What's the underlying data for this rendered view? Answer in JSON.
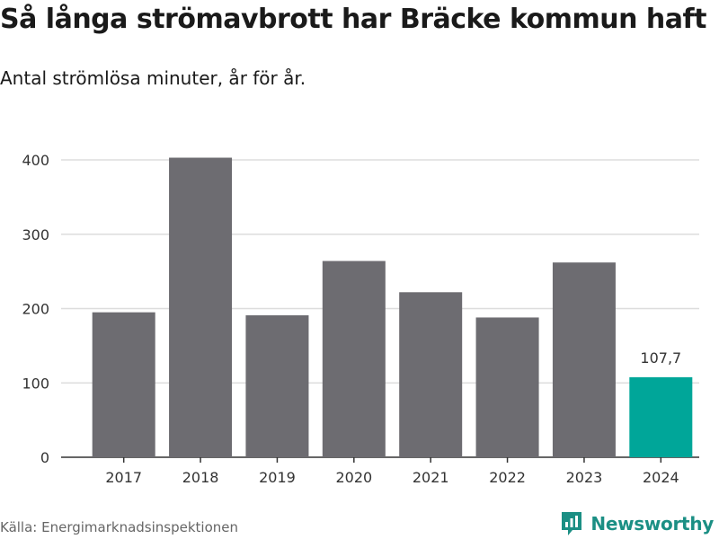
{
  "title": "Så långa strömavbrott har Bräcke kommun haft",
  "subtitle": "Antal strömlösa minuter, år för år.",
  "source": "Källa: Energimarknadsinspektionen",
  "brand": {
    "name": "Newsworthy",
    "icon": "newsworthy-logo-icon"
  },
  "colors": {
    "bar": "#6d6c71",
    "highlight": "#00a699",
    "grid": "#dddddd",
    "axis": "#333333"
  },
  "chart_data": {
    "type": "bar",
    "title": "Så långa strömavbrott har Bräcke kommun haft",
    "subtitle": "Antal strömlösa minuter, år för år.",
    "categories": [
      "2017",
      "2018",
      "2019",
      "2020",
      "2021",
      "2022",
      "2023",
      "2024"
    ],
    "values": [
      195,
      403,
      191,
      264,
      222,
      188,
      262,
      107.7
    ],
    "highlight_index": 7,
    "data_labels": [
      {
        "index": 7,
        "text": "107,7"
      }
    ],
    "ylim": [
      0,
      400
    ],
    "yticks": [
      0,
      100,
      200,
      300,
      400
    ],
    "xlabel": "",
    "ylabel": "",
    "grid": true
  }
}
